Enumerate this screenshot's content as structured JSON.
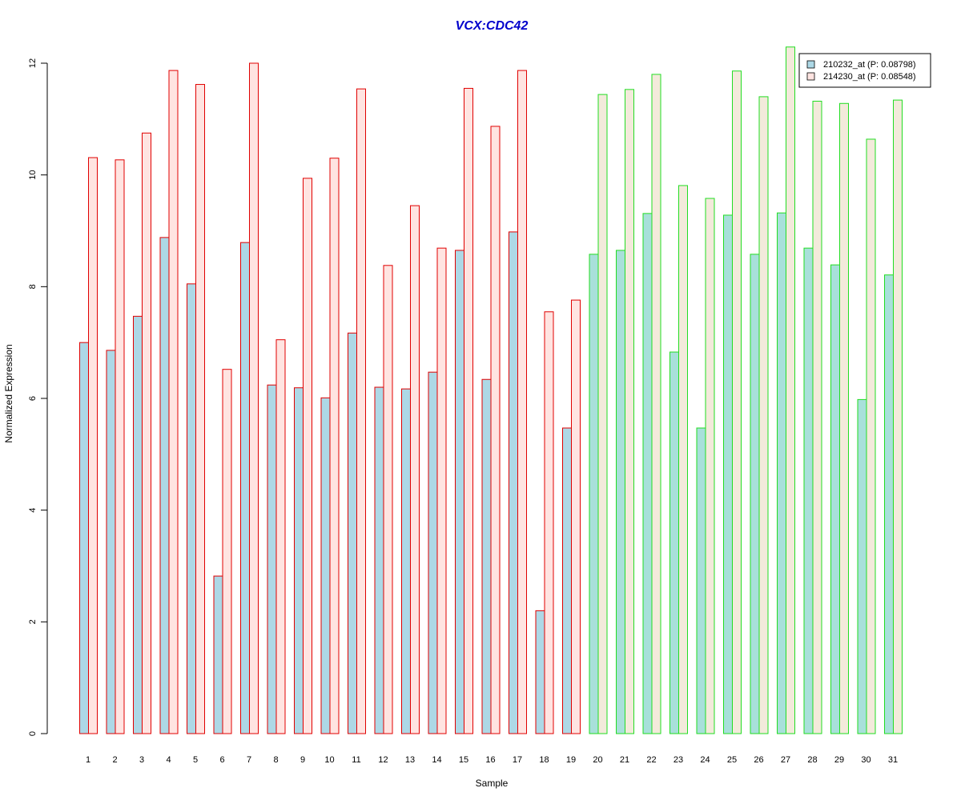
{
  "chart_data": {
    "type": "bar",
    "title": "VCX:CDC42",
    "title_color": "#0000CC",
    "xlabel": "Sample",
    "ylabel": "Normalized Expression",
    "ylim": [
      0,
      12
    ],
    "y_ticks": [
      0,
      2,
      4,
      6,
      8,
      10,
      12
    ],
    "grid": false,
    "legend_position": "top-right",
    "categories": [
      "1",
      "2",
      "3",
      "4",
      "5",
      "6",
      "7",
      "8",
      "9",
      "10",
      "11",
      "12",
      "13",
      "14",
      "15",
      "16",
      "17",
      "18",
      "19",
      "20",
      "21",
      "22",
      "23",
      "24",
      "25",
      "26",
      "27",
      "28",
      "29",
      "30",
      "31"
    ],
    "group_outline_colors": {
      "group_1": "#E00000",
      "group_2": "#22DD22"
    },
    "group_of_category": [
      "group_1",
      "group_1",
      "group_1",
      "group_1",
      "group_1",
      "group_1",
      "group_1",
      "group_1",
      "group_1",
      "group_1",
      "group_1",
      "group_1",
      "group_1",
      "group_1",
      "group_1",
      "group_1",
      "group_1",
      "group_1",
      "group_1",
      "group_2",
      "group_2",
      "group_2",
      "group_2",
      "group_2",
      "group_2",
      "group_2",
      "group_2",
      "group_2",
      "group_2",
      "group_2",
      "group_2"
    ],
    "series": [
      {
        "name": "210232_at (P: 0.08798)",
        "fill_group_1": "#ADD8E6",
        "fill_group_2": "#A8E0DA",
        "values": [
          7.0,
          6.86,
          7.47,
          8.88,
          8.05,
          2.82,
          8.79,
          6.24,
          6.19,
          6.01,
          7.17,
          6.2,
          6.17,
          6.47,
          8.65,
          6.34,
          8.98,
          2.2,
          5.47,
          8.58,
          8.65,
          9.31,
          6.83,
          5.47,
          9.28,
          8.58,
          9.32,
          8.69,
          8.39,
          5.98,
          8.21
        ]
      },
      {
        "name": "214230_at (P: 0.08548)",
        "fill_group_1": "#FFE4E1",
        "fill_group_2": "#F3EADB",
        "values": [
          10.31,
          10.27,
          10.75,
          11.87,
          11.62,
          6.52,
          12.0,
          7.05,
          9.94,
          10.3,
          11.54,
          8.38,
          9.45,
          8.69,
          11.55,
          10.87,
          11.87,
          7.55,
          7.76,
          11.44,
          11.53,
          11.8,
          9.81,
          9.58,
          11.86,
          11.4,
          12.29,
          11.32,
          11.28,
          10.64,
          11.34
        ]
      }
    ]
  }
}
